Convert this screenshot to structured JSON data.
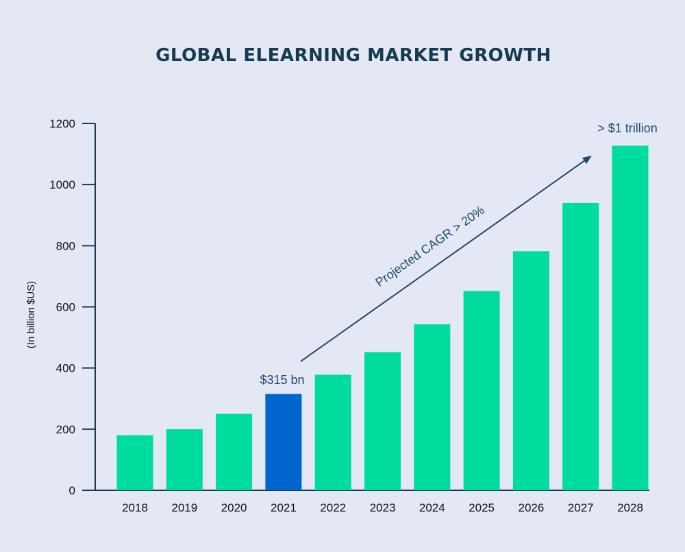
{
  "chart_data": {
    "type": "bar",
    "title": "GLOBAL ELEARNING MARKET GROWTH",
    "xlabel": "",
    "ylabel": "(In billion $US)",
    "categories": [
      "2018",
      "2019",
      "2020",
      "2021",
      "2022",
      "2023",
      "2024",
      "2025",
      "2026",
      "2027",
      "2028"
    ],
    "values": [
      180,
      200,
      250,
      315,
      378,
      452,
      543,
      652,
      782,
      940,
      1127
    ],
    "highlight_index": 3,
    "ylim": [
      0,
      1200
    ],
    "yticks": [
      0,
      200,
      400,
      600,
      800,
      1000,
      1200
    ],
    "colors": {
      "bar": "#00dc9c",
      "highlight": "#0065cc",
      "axis": "#153a52",
      "annotation": "#1c4a6a",
      "background": "#e3e8f4"
    },
    "annotations": {
      "highlight_label": "$315 bn",
      "final_label": "> $1 trillion",
      "trend_label": "Projected CAGR > 20%"
    }
  }
}
